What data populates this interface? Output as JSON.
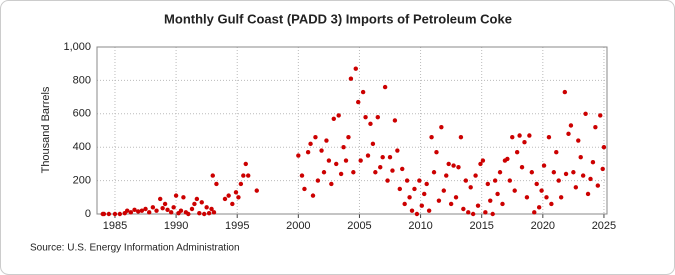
{
  "chart_data": {
    "type": "scatter",
    "title": "Monthly Gulf Coast (PADD 3) Imports of Petroleum Coke",
    "y_label": "Thousand Barrels",
    "source": "Source: U.S. Energy Information Administration",
    "color": "#cc0000",
    "grid": true,
    "xlim": [
      1983.53,
      2025.25
    ],
    "ylim": [
      0,
      1000
    ],
    "xticks": [
      1985,
      1990,
      1995,
      2000,
      2005,
      2010,
      2015,
      2020,
      2025
    ],
    "yticks": [
      0,
      200,
      400,
      600,
      800,
      {
        "value": 1000,
        "label": "1,000"
      }
    ],
    "x": [
      1984.0,
      1984.1,
      1984.5,
      1985.0,
      1985.4,
      1985.8,
      1986.0,
      1986.3,
      1986.6,
      1986.9,
      1987.2,
      1987.5,
      1987.8,
      1988.1,
      1988.4,
      1988.7,
      1988.9,
      1989.1,
      1989.3,
      1989.6,
      1989.8,
      1990.0,
      1990.2,
      1990.4,
      1990.6,
      1990.8,
      1991.0,
      1991.3,
      1991.5,
      1991.7,
      1991.9,
      1992.1,
      1992.3,
      1992.5,
      1992.7,
      1992.9,
      1993.0,
      1993.1,
      1993.3,
      1994.0,
      1994.3,
      1994.6,
      1994.9,
      1995.1,
      1995.3,
      1995.5,
      1995.7,
      1995.9,
      1996.6,
      2000.0,
      2000.3,
      2000.5,
      2000.8,
      2001.0,
      2001.2,
      2001.4,
      2001.6,
      2001.9,
      2002.1,
      2002.3,
      2002.5,
      2002.7,
      2002.9,
      2003.1,
      2003.3,
      2003.5,
      2003.7,
      2003.9,
      2004.1,
      2004.3,
      2004.5,
      2004.7,
      2004.9,
      2005.1,
      2005.3,
      2005.5,
      2005.7,
      2005.9,
      2006.1,
      2006.3,
      2006.5,
      2006.7,
      2006.9,
      2007.1,
      2007.3,
      2007.5,
      2007.7,
      2007.9,
      2008.1,
      2008.3,
      2008.5,
      2008.7,
      2008.9,
      2009.1,
      2009.3,
      2009.5,
      2009.7,
      2009.9,
      2010.1,
      2010.3,
      2010.5,
      2010.7,
      2010.9,
      2011.1,
      2011.3,
      2011.5,
      2011.7,
      2011.9,
      2012.1,
      2012.3,
      2012.5,
      2012.7,
      2012.9,
      2013.1,
      2013.3,
      2013.5,
      2013.7,
      2013.9,
      2014.1,
      2014.3,
      2014.5,
      2014.7,
      2014.9,
      2015.1,
      2015.3,
      2015.5,
      2015.7,
      2015.9,
      2016.1,
      2016.3,
      2016.5,
      2016.7,
      2016.9,
      2017.1,
      2017.3,
      2017.5,
      2017.7,
      2017.9,
      2018.1,
      2018.3,
      2018.5,
      2018.7,
      2018.9,
      2019.1,
      2019.3,
      2019.5,
      2019.7,
      2019.9,
      2020.1,
      2020.3,
      2020.5,
      2020.7,
      2020.9,
      2021.1,
      2021.3,
      2021.5,
      2021.8,
      2021.9,
      2022.1,
      2022.3,
      2022.5,
      2022.7,
      2022.9,
      2023.1,
      2023.3,
      2023.5,
      2023.7,
      2023.9,
      2024.1,
      2024.3,
      2024.5,
      2024.7,
      2024.9,
      2025.0
    ],
    "values": [
      0,
      0,
      0,
      0,
      0,
      5,
      20,
      10,
      25,
      15,
      20,
      30,
      10,
      40,
      20,
      90,
      35,
      60,
      25,
      10,
      40,
      110,
      5,
      20,
      100,
      10,
      0,
      30,
      60,
      90,
      5,
      70,
      0,
      40,
      5,
      30,
      230,
      10,
      180,
      90,
      110,
      60,
      130,
      100,
      180,
      230,
      300,
      230,
      140,
      350,
      230,
      150,
      370,
      420,
      110,
      460,
      200,
      380,
      250,
      440,
      320,
      180,
      570,
      300,
      590,
      240,
      400,
      320,
      460,
      810,
      250,
      870,
      670,
      320,
      730,
      580,
      350,
      540,
      420,
      250,
      580,
      280,
      340,
      760,
      200,
      340,
      260,
      560,
      380,
      150,
      270,
      60,
      200,
      100,
      20,
      150,
      0,
      200,
      50,
      120,
      180,
      20,
      460,
      250,
      370,
      80,
      520,
      140,
      230,
      300,
      60,
      290,
      100,
      280,
      460,
      30,
      200,
      10,
      160,
      0,
      230,
      50,
      300,
      320,
      10,
      180,
      80,
      0,
      200,
      120,
      250,
      60,
      320,
      330,
      200,
      460,
      140,
      370,
      470,
      280,
      430,
      100,
      470,
      250,
      10,
      180,
      40,
      140,
      290,
      100,
      460,
      60,
      250,
      370,
      200,
      100,
      730,
      240,
      480,
      530,
      250,
      160,
      440,
      340,
      230,
      600,
      120,
      210,
      310,
      520,
      170,
      590,
      270,
      400
    ]
  }
}
